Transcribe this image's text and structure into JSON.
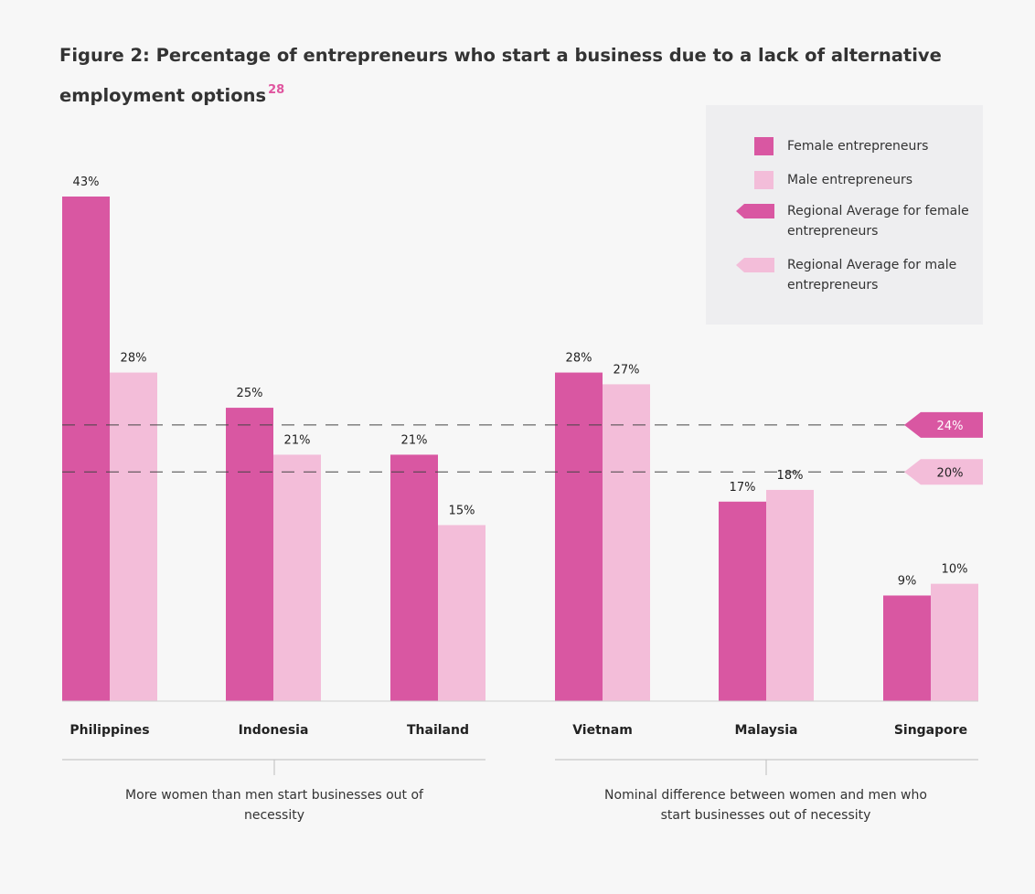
{
  "title": "Figure 2: Percentage of entrepreneurs who start a business due to a lack of alternative employment options",
  "footnote_ref": "28",
  "colors": {
    "female": "#d957a2",
    "male": "#f3bdd9",
    "background": "#f7f7f7",
    "legend_bg": "#eeeef0",
    "accent": "#e0559f"
  },
  "legend": {
    "female": "Female entrepreneurs",
    "male": "Male entrepreneurs",
    "avg_female": "Regional Average for female entrepreneurs",
    "avg_male": "Regional Average for male entrepreneurs"
  },
  "groups": [
    {
      "label": "More women than men start businesses out of necessity"
    },
    {
      "label": "Nominal difference between women and men who start businesses out of necessity"
    }
  ],
  "chart_data": {
    "type": "bar",
    "categories": [
      "Philippines",
      "Indonesia",
      "Thailand",
      "Vietnam",
      "Malaysia",
      "Singapore"
    ],
    "series": [
      {
        "name": "Female entrepreneurs",
        "values": [
          43,
          25,
          21,
          28,
          17,
          9
        ]
      },
      {
        "name": "Male entrepreneurs",
        "values": [
          28,
          21,
          15,
          27,
          18,
          10
        ]
      }
    ],
    "data_labels_female": [
      "43%",
      "25%",
      "21%",
      "28%",
      "17%",
      "9%"
    ],
    "data_labels_male": [
      "28%",
      "21%",
      "15%",
      "27%",
      "18%",
      "10%"
    ],
    "reference_lines": [
      {
        "name": "Regional Average for female entrepreneurs",
        "value": 24,
        "label": "24%"
      },
      {
        "name": "Regional Average for male entrepreneurs",
        "value": 20,
        "label": "20%"
      }
    ],
    "ylim": [
      0,
      45
    ],
    "grid": false,
    "legend_position": "top-right"
  }
}
